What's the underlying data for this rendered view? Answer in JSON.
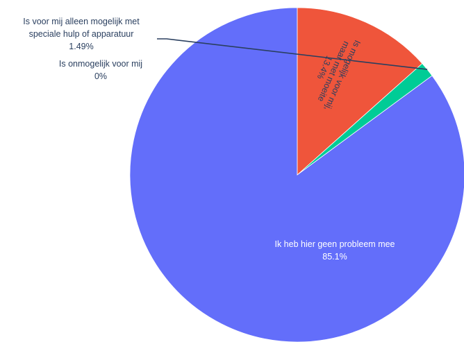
{
  "chart_data": {
    "type": "pie",
    "title": "",
    "slices": [
      {
        "label": "Ik heb hier geen probleem mee",
        "label_lines": [
          "Ik heb hier geen probleem mee"
        ],
        "value": 85.1,
        "value_text": "85.1%",
        "color": "#636efa",
        "label_color": "#ffffff"
      },
      {
        "label": "Is voor mij alleen mogelijk met speciale hulp of apparatuur",
        "label_lines": [
          "Is voor mij alleen mogelijk met",
          "speciale hulp of apparatuur"
        ],
        "value": 1.49,
        "value_text": "1.49%",
        "color": "#00cc96",
        "label_color": "#2a3f5f"
      },
      {
        "label": "Is onmogelijk voor mij",
        "label_lines": [
          "Is onmogelijk voor mij"
        ],
        "value": 0,
        "value_text": "0%",
        "color": "#ab63fa",
        "label_color": "#2a3f5f"
      },
      {
        "label": "Is mogelijk voor mij, maar met moeite",
        "label_lines": [
          "Is mogelijk voor mij,",
          "maar met moeite"
        ],
        "value": 13.4,
        "value_text": "13.4%",
        "color": "#ef553b",
        "label_color": "#2a3f5f"
      }
    ],
    "legend": "none",
    "start_angle": "12 o'clock",
    "direction": "counterclockwise"
  }
}
